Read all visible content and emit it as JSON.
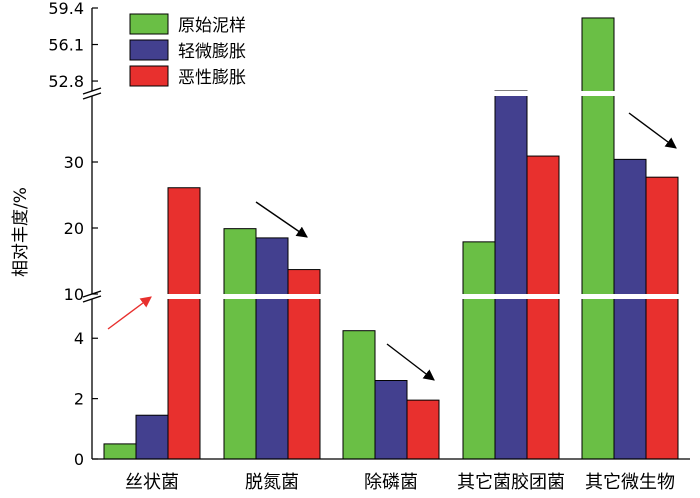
{
  "chart_data": {
    "type": "bar",
    "ylabel": "相对丰度/%",
    "categories": [
      "丝状菌",
      "脱氮菌",
      "除磷菌",
      "其它菌胶团菌",
      "其它微生物"
    ],
    "series": [
      {
        "name": "原始泥样",
        "color": "#6abf45",
        "values": [
          0.5,
          19.9,
          4.25,
          17.9,
          58.5
        ]
      },
      {
        "name": "轻微膨胀",
        "color": "#43408f",
        "values": [
          1.45,
          18.5,
          2.6,
          49.5,
          30.4
        ]
      },
      {
        "name": "恶性膨胀",
        "color": "#e8302e",
        "values": [
          26.1,
          13.7,
          1.95,
          30.9,
          27.7
        ]
      }
    ],
    "y_axis_breaks": [
      {
        "ylim": [
          0,
          5.3
        ],
        "ticks": [
          "0",
          "2",
          "4"
        ]
      },
      {
        "ylim": [
          10,
          40
        ],
        "ticks": [
          "10",
          "20",
          "30"
        ]
      },
      {
        "ylim": [
          51.9,
          59.4
        ],
        "ticks": [
          "52.8",
          "56.1",
          "59.4"
        ]
      }
    ],
    "legend_placement": "top-left",
    "annotations": [
      {
        "type": "arrow",
        "direction": "up",
        "category": "丝状菌",
        "color": "#e8302e"
      },
      {
        "type": "arrow",
        "direction": "down",
        "category": "脱氮菌",
        "color": "#000000"
      },
      {
        "type": "arrow",
        "direction": "down",
        "category": "除磷菌",
        "color": "#000000"
      },
      {
        "type": "arrow",
        "direction": "down",
        "category": "其它微生物",
        "color": "#000000"
      }
    ]
  }
}
